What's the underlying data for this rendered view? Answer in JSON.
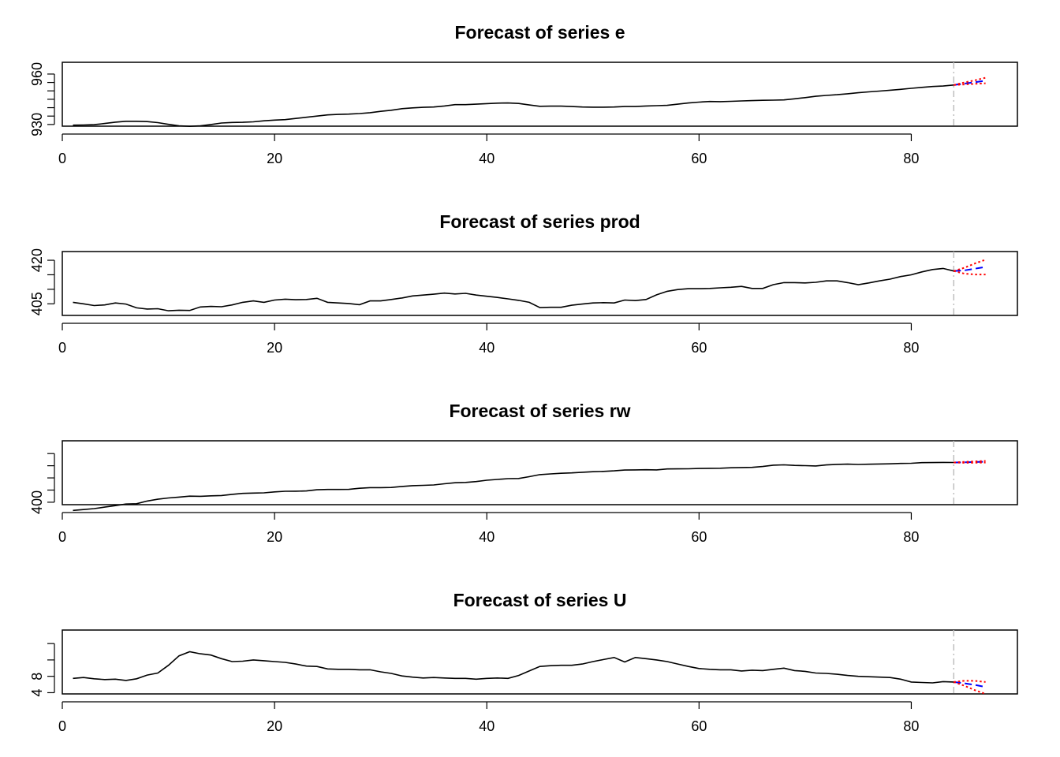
{
  "chart_data": [
    {
      "type": "line",
      "title": "Forecast of series e",
      "xlim": [
        0,
        90
      ],
      "ylim": [
        929,
        967
      ],
      "x_ticks": [
        0,
        20,
        40,
        60,
        80
      ],
      "x_tick_labels": [
        "0",
        "20",
        "40",
        "60",
        "80"
      ],
      "y_ticks": [
        930,
        935,
        940,
        945,
        950,
        955,
        960
      ],
      "y_tick_labels": [
        "930",
        "",
        "",
        "",
        "",
        "",
        "960"
      ],
      "forecast_origin": 84,
      "series": [
        {
          "values": [
            929.6,
            929.7,
            929.9,
            930.6,
            931.4,
            931.9,
            931.9,
            931.7,
            931.1,
            930.1,
            929.2,
            928.9,
            929.2,
            930.0,
            930.9,
            931.2,
            931.3,
            931.6,
            932.2,
            932.6,
            932.9,
            933.6,
            934.3,
            935.0,
            935.7,
            936.0,
            936.2,
            936.5,
            937.0,
            937.8,
            938.5,
            939.4,
            939.9,
            940.2,
            940.4,
            941.0,
            941.8,
            941.8,
            942.1,
            942.4,
            942.7,
            942.8,
            942.5,
            941.6,
            940.8,
            940.9,
            940.9,
            940.7,
            940.4,
            940.3,
            940.3,
            940.4,
            940.7,
            940.7,
            941.0,
            941.2,
            941.4,
            942.1,
            942.8,
            943.3,
            943.7,
            943.6,
            943.8,
            944.0,
            944.2,
            944.4,
            944.5,
            944.6,
            945.3,
            946.0,
            946.8,
            947.3,
            947.7,
            948.3,
            948.9,
            949.4,
            949.9,
            950.4,
            950.9,
            951.5,
            952.1,
            952.6,
            952.9,
            953.5
          ]
        },
        {
          "name": "forecast",
          "x": [
            84,
            85,
            86,
            87
          ],
          "values": [
            953.5,
            954.3,
            955.2,
            956.0
          ]
        },
        {
          "name": "upper",
          "x": [
            84,
            85,
            86,
            87
          ],
          "values": [
            953.5,
            955.0,
            956.3,
            957.8
          ]
        },
        {
          "name": "lower",
          "x": [
            84,
            85,
            86,
            87
          ],
          "values": [
            953.5,
            953.8,
            954.2,
            954.5
          ]
        }
      ]
    },
    {
      "type": "line",
      "title": "Forecast of series prod",
      "xlim": [
        0,
        90
      ],
      "ylim": [
        401,
        423
      ],
      "x_ticks": [
        0,
        20,
        40,
        60,
        80
      ],
      "x_tick_labels": [
        "0",
        "20",
        "40",
        "60",
        "80"
      ],
      "y_ticks": [
        405,
        410,
        415,
        420
      ],
      "y_tick_labels": [
        "405",
        "",
        "",
        "420"
      ],
      "forecast_origin": 84,
      "series": [
        {
          "values": [
            405.5,
            405.0,
            404.4,
            404.6,
            405.3,
            404.9,
            403.6,
            403.2,
            403.3,
            402.6,
            402.8,
            402.7,
            403.9,
            404.1,
            404.0,
            404.6,
            405.5,
            406.0,
            405.5,
            406.3,
            406.6,
            406.4,
            406.5,
            406.9,
            405.5,
            405.3,
            405.1,
            404.7,
            406.0,
            406.0,
            406.5,
            407.0,
            407.7,
            408.0,
            408.3,
            408.7,
            408.4,
            408.6,
            408.0,
            407.6,
            407.2,
            406.7,
            406.2,
            405.5,
            403.7,
            403.8,
            403.8,
            404.5,
            404.9,
            405.3,
            405.4,
            405.3,
            406.3,
            406.1,
            406.5,
            408.1,
            409.3,
            409.9,
            410.2,
            410.2,
            410.3,
            410.5,
            410.7,
            411.0,
            410.3,
            410.3,
            411.6,
            412.3,
            412.3,
            412.2,
            412.4,
            412.9,
            412.9,
            412.3,
            411.6,
            412.2,
            412.9,
            413.5,
            414.4,
            415.0,
            416.0,
            416.8,
            417.2,
            416.3
          ]
        },
        {
          "name": "forecast",
          "x": [
            84,
            85,
            86,
            87
          ],
          "values": [
            416.3,
            416.5,
            417.1,
            417.7
          ]
        },
        {
          "name": "upper",
          "x": [
            84,
            85,
            86,
            87
          ],
          "values": [
            416.3,
            417.4,
            418.9,
            420.2
          ]
        },
        {
          "name": "lower",
          "x": [
            84,
            85,
            86,
            87
          ],
          "values": [
            416.3,
            415.4,
            415.1,
            415.1
          ]
        }
      ]
    },
    {
      "type": "line",
      "title": "Forecast of series rw",
      "xlim": [
        0,
        90
      ],
      "ylim": [
        396,
        501
      ],
      "x_ticks": [
        0,
        20,
        40,
        60,
        80
      ],
      "x_tick_labels": [
        "0",
        "20",
        "40",
        "60",
        "80"
      ],
      "y_ticks": [
        400,
        420,
        440,
        460,
        480
      ],
      "y_tick_labels": [
        "400",
        "",
        "",
        "",
        ""
      ],
      "forecast_origin": 84,
      "series": [
        {
          "values": [
            386.5,
            388.0,
            389.5,
            392.0,
            394.5,
            397.0,
            397.5,
            402.0,
            405.0,
            407.0,
            408.5,
            410.0,
            409.8,
            410.5,
            411.0,
            413.0,
            414.5,
            415.0,
            415.5,
            417.0,
            418.0,
            418.2,
            418.5,
            420.5,
            421.0,
            421.0,
            421.2,
            423.0,
            424.0,
            424.0,
            424.3,
            426.0,
            427.3,
            427.8,
            428.4,
            430.4,
            432.1,
            432.6,
            434.0,
            436.2,
            437.5,
            438.8,
            439.1,
            442.0,
            445.4,
            446.6,
            447.6,
            448.3,
            449.3,
            450.2,
            450.7,
            451.6,
            452.9,
            453.2,
            453.4,
            453.2,
            454.7,
            454.8,
            455.0,
            455.5,
            455.7,
            455.9,
            456.7,
            457.0,
            457.3,
            458.7,
            460.9,
            461.5,
            460.5,
            460.2,
            459.7,
            461.3,
            462.2,
            462.6,
            462.1,
            462.5,
            462.9,
            463.2,
            463.8,
            464.0,
            465.1,
            465.2,
            465.5,
            465.3
          ]
        },
        {
          "name": "forecast",
          "x": [
            84,
            85,
            86,
            87
          ],
          "values": [
            465.3,
            465.6,
            466.1,
            466.6
          ]
        },
        {
          "name": "upper",
          "x": [
            84,
            85,
            86,
            87
          ],
          "values": [
            465.3,
            466.4,
            467.2,
            468.0
          ]
        },
        {
          "name": "lower",
          "x": [
            84,
            85,
            86,
            87
          ],
          "values": [
            465.3,
            464.8,
            465.0,
            465.2
          ]
        }
      ]
    },
    {
      "type": "line",
      "title": "Forecast of series U",
      "xlim": [
        0,
        90
      ],
      "ylim": [
        3.7,
        19.3
      ],
      "x_ticks": [
        0,
        20,
        40,
        60,
        80
      ],
      "x_tick_labels": [
        "0",
        "20",
        "40",
        "60",
        "80"
      ],
      "y_ticks": [
        4,
        8,
        12,
        16
      ],
      "y_tick_labels": [
        "4",
        "8",
        "",
        ""
      ],
      "forecast_origin": 84,
      "series": [
        {
          "values": [
            7.5,
            7.7,
            7.4,
            7.2,
            7.3,
            7.0,
            7.4,
            8.3,
            8.8,
            10.7,
            13.0,
            14.0,
            13.5,
            13.2,
            12.3,
            11.6,
            11.7,
            12.0,
            11.8,
            11.6,
            11.4,
            11.0,
            10.5,
            10.4,
            9.8,
            9.7,
            9.7,
            9.6,
            9.6,
            9.1,
            8.7,
            8.1,
            7.8,
            7.6,
            7.7,
            7.6,
            7.5,
            7.5,
            7.3,
            7.5,
            7.6,
            7.5,
            8.2,
            9.3,
            10.4,
            10.6,
            10.7,
            10.7,
            11.0,
            11.6,
            12.1,
            12.6,
            11.5,
            12.6,
            12.3,
            12.0,
            11.6,
            11.0,
            10.4,
            9.9,
            9.7,
            9.6,
            9.6,
            9.3,
            9.5,
            9.4,
            9.7,
            10.0,
            9.4,
            9.2,
            8.8,
            8.7,
            8.5,
            8.2,
            8.0,
            7.9,
            7.8,
            7.7,
            7.3,
            6.6,
            6.5,
            6.4,
            6.7,
            6.6
          ]
        },
        {
          "name": "forecast",
          "x": [
            84,
            85,
            86,
            87
          ],
          "values": [
            6.6,
            6.3,
            5.9,
            5.4
          ]
        },
        {
          "name": "upper",
          "x": [
            84,
            85,
            86,
            87
          ],
          "values": [
            6.6,
            6.9,
            6.9,
            6.6
          ]
        },
        {
          "name": "lower",
          "x": [
            84,
            85,
            86,
            87
          ],
          "values": [
            6.6,
            5.7,
            4.6,
            3.7
          ]
        }
      ]
    }
  ],
  "colors": {
    "actual": "#000000",
    "forecast": "#0000ff",
    "interval": "#ff0000",
    "forecast_origin_line": "#bebebe"
  }
}
